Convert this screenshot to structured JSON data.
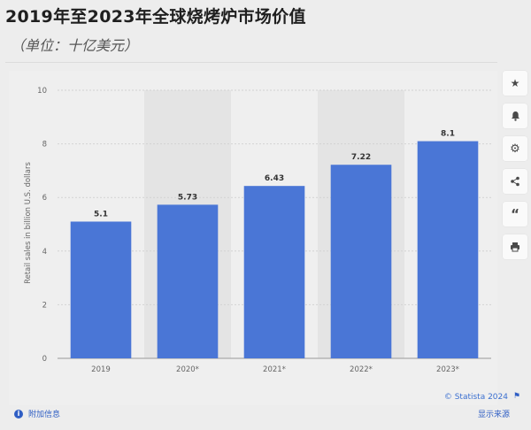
{
  "page": {
    "title": "2019年至2023年全球烧烤炉市场价值",
    "subtitle": "（单位：十亿美元）"
  },
  "chart_data": {
    "type": "bar",
    "categories": [
      "2019",
      "2020*",
      "2021*",
      "2022*",
      "2023*"
    ],
    "values": [
      5.1,
      5.73,
      6.43,
      7.22,
      8.1
    ],
    "value_labels": [
      "5.1",
      "5.73",
      "6.43",
      "7.22",
      "8.1"
    ],
    "ylabel": "Retail sales in billion U.S. dollars",
    "ylim": [
      0,
      10
    ],
    "yticks": [
      0,
      2,
      4,
      6,
      8,
      10
    ],
    "grid": true,
    "bar_color": "#4a76d6"
  },
  "toolbar": {
    "icons": [
      "star-icon",
      "bell-icon",
      "gear-icon",
      "share-icon",
      "quote-icon",
      "print-icon"
    ]
  },
  "footer": {
    "credit": "© Statista 2024",
    "info_label": "附加信息",
    "source_label": "显示来源"
  }
}
